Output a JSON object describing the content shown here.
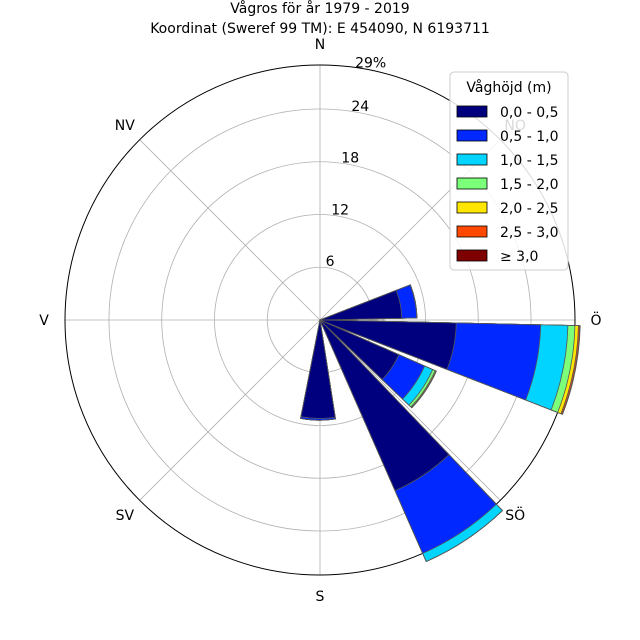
{
  "chart_data": {
    "type": "windrose",
    "title": "Vågros för år 1979 - 2019",
    "subtitle": "Koordinat (Sweref 99 TM): E 454090, N 6193711",
    "directions": [
      "N",
      "NO",
      "Ö",
      "SÖ",
      "S",
      "SV",
      "V",
      "NV"
    ],
    "radial_ticks": [
      "6",
      "12",
      "18",
      "24"
    ],
    "radial_max_label": "29%",
    "rmax": 29,
    "legend": {
      "title": "Våghöjd (m)",
      "placement": "top-right",
      "entries": [
        "0,0 - 0,5",
        "0,5 - 1,0",
        "1,0 - 1,5",
        "1,5 - 2,0",
        "2,0 - 2,5",
        "2,5 - 3,0",
        "≥ 3,0"
      ],
      "colors": [
        "#00007f",
        "#0028ff",
        "#00d4ff",
        "#7cff79",
        "#ffe600",
        "#ff4800",
        "#7f0000"
      ]
    },
    "sectors": [
      {
        "angle": 78.75,
        "cumulative": [
          9.3,
          11.0,
          11.02,
          11.03,
          11.03,
          11.03,
          11.03
        ]
      },
      {
        "angle": 101.25,
        "cumulative": [
          15.5,
          25.1,
          28.2,
          29.0,
          29.4,
          29.55,
          29.6
        ]
      },
      {
        "angle": 123.75,
        "cumulative": [
          9.8,
          13.0,
          14.0,
          14.3,
          14.4,
          14.45,
          14.45
        ]
      },
      {
        "angle": 146.25,
        "cumulative": [
          21.2,
          29.0,
          30.0,
          30.0,
          30.0,
          30.0,
          30.0
        ]
      },
      {
        "angle": 181.125,
        "cumulative": [
          11.2,
          11.4,
          11.4,
          11.4,
          11.4,
          11.4,
          11.4
        ]
      }
    ]
  }
}
